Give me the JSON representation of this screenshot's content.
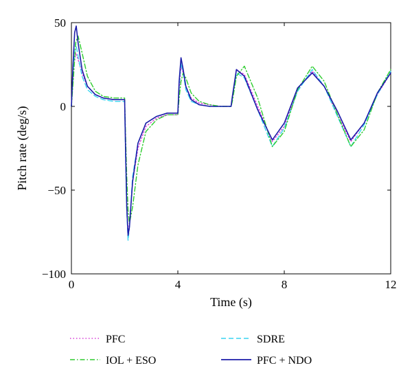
{
  "chart_data": {
    "type": "line",
    "xlabel": "Time (s)",
    "ylabel": "Pitch rate (deg/s)",
    "xlim": [
      0,
      12
    ],
    "ylim": [
      -100,
      50
    ],
    "xticks": [
      0,
      4,
      8,
      12
    ],
    "yticks": [
      -100,
      -50,
      0,
      50
    ],
    "xtick_labels": [
      "0",
      "4",
      "8",
      "12"
    ],
    "ytick_labels": [
      "−100",
      "−50",
      "0",
      "50"
    ],
    "grid": false,
    "legend_position": "bottom",
    "series": [
      {
        "name": "PFC",
        "color": "#d63cd6",
        "style": "dotted",
        "x": [
          0,
          0.08,
          0.16,
          0.25,
          0.4,
          0.6,
          0.9,
          1.2,
          1.6,
          2.0,
          2.04,
          2.08,
          2.13,
          2.18,
          2.3,
          2.5,
          2.8,
          3.2,
          3.6,
          4.0,
          4.05,
          4.12,
          4.2,
          4.3,
          4.5,
          4.8,
          5.2,
          5.6,
          6.0,
          6.05,
          6.2,
          6.5,
          7.0,
          7.55,
          8.0,
          8.5,
          9.05,
          9.5,
          10.0,
          10.5,
          11.0,
          11.5,
          12.0
        ],
        "y": [
          0,
          22,
          32,
          28,
          20,
          12,
          7,
          5,
          4,
          4,
          -30,
          -55,
          -76,
          -70,
          -45,
          -25,
          -12,
          -7,
          -5,
          -5,
          10,
          24,
          20,
          12,
          5,
          2,
          1,
          0,
          0,
          5,
          22,
          19,
          0,
          -21,
          -12,
          10,
          21,
          12,
          -5,
          -21,
          -10,
          7,
          20
        ]
      },
      {
        "name": "SDRE",
        "color": "#38d4f0",
        "style": "dashed",
        "x": [
          0,
          0.08,
          0.16,
          0.25,
          0.4,
          0.6,
          0.9,
          1.2,
          1.6,
          2.0,
          2.04,
          2.08,
          2.13,
          2.18,
          2.3,
          2.5,
          2.8,
          3.2,
          3.6,
          4.0,
          4.05,
          4.12,
          4.2,
          4.3,
          4.5,
          4.8,
          5.2,
          5.6,
          6.0,
          6.05,
          6.2,
          6.5,
          7.0,
          7.55,
          8.0,
          8.5,
          9.05,
          9.5,
          10.0,
          10.5,
          11.0,
          11.5,
          12.0
        ],
        "y": [
          0,
          25,
          38,
          30,
          18,
          10,
          6,
          4,
          3,
          3,
          -35,
          -62,
          -80,
          -72,
          -42,
          -22,
          -10,
          -6,
          -4,
          -4,
          12,
          26,
          20,
          10,
          3,
          1,
          0,
          0,
          0,
          5,
          20,
          17,
          -2,
          -24,
          -13,
          9,
          22,
          12,
          -6,
          -24,
          -11,
          7,
          21
        ]
      },
      {
        "name": "IOL + ESO",
        "color": "#2ecc2e",
        "style": "dashdot",
        "x": [
          0,
          0.08,
          0.16,
          0.25,
          0.4,
          0.6,
          0.9,
          1.2,
          1.6,
          2.0,
          2.04,
          2.08,
          2.13,
          2.18,
          2.3,
          2.5,
          2.8,
          3.2,
          3.6,
          4.0,
          4.05,
          4.12,
          4.2,
          4.3,
          4.5,
          4.8,
          5.2,
          5.6,
          6.0,
          6.05,
          6.2,
          6.5,
          7.0,
          7.55,
          8.0,
          8.5,
          9.05,
          9.5,
          10.0,
          10.5,
          11.0,
          11.5,
          12.0
        ],
        "y": [
          0,
          18,
          38,
          42,
          32,
          18,
          9,
          6,
          5,
          5,
          -20,
          -42,
          -62,
          -70,
          -60,
          -35,
          -15,
          -8,
          -5,
          -5,
          5,
          15,
          20,
          17,
          8,
          3,
          1,
          0,
          0,
          3,
          18,
          24,
          5,
          -24,
          -15,
          10,
          24,
          15,
          -5,
          -24,
          -14,
          8,
          22
        ]
      },
      {
        "name": "PFC + NDO",
        "color": "#1b1ba8",
        "style": "solid",
        "x": [
          0,
          0.06,
          0.12,
          0.18,
          0.25,
          0.4,
          0.6,
          0.9,
          1.2,
          1.6,
          2.0,
          2.04,
          2.08,
          2.13,
          2.18,
          2.3,
          2.5,
          2.8,
          3.2,
          3.6,
          4.0,
          4.05,
          4.12,
          4.2,
          4.3,
          4.5,
          4.8,
          5.2,
          5.6,
          6.0,
          6.05,
          6.2,
          6.5,
          7.0,
          7.55,
          8.0,
          8.5,
          9.05,
          9.5,
          10.0,
          10.5,
          11.0,
          11.5,
          12.0
        ],
        "y": [
          0,
          25,
          44,
          48,
          38,
          22,
          12,
          7,
          5,
          4,
          4,
          -30,
          -60,
          -77,
          -72,
          -45,
          -22,
          -10,
          -6,
          -4,
          -4,
          15,
          29,
          22,
          12,
          4,
          1,
          0,
          0,
          0,
          6,
          22,
          18,
          -2,
          -20,
          -10,
          11,
          20,
          12,
          -3,
          -20,
          -10,
          8,
          20
        ]
      }
    ]
  }
}
